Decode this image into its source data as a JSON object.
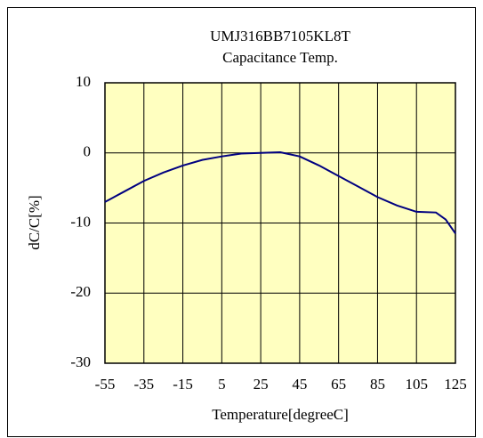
{
  "chart_data": {
    "type": "line",
    "title": "UMJ316BB7105KL8T",
    "subtitle": "Capacitance Temp.",
    "xlabel": "Temperature[degreeC]",
    "ylabel": "dC/C[%]",
    "x": [
      -55,
      -45,
      -35,
      -25,
      -15,
      -5,
      5,
      15,
      25,
      35,
      45,
      55,
      65,
      75,
      85,
      95,
      105,
      115,
      120,
      125
    ],
    "series": [
      {
        "name": "UMJ316BB7105KL8T",
        "color": "#000080",
        "values": [
          -7,
          -5.5,
          -4,
          -2.8,
          -1.8,
          -1,
          -0.5,
          -0.1,
          0,
          0.1,
          -0.5,
          -1.8,
          -3.3,
          -4.8,
          -6.3,
          -7.5,
          -8.4,
          -8.5,
          -9.5,
          -11.5
        ]
      }
    ],
    "xlim": [
      -55,
      125
    ],
    "xticks": [
      -55,
      -35,
      -15,
      5,
      25,
      45,
      65,
      85,
      105,
      125
    ],
    "ylim": [
      -30,
      10
    ],
    "yticks": [
      -30,
      -20,
      -10,
      0,
      10
    ],
    "grid": true,
    "plot_background": "#ffffc0"
  }
}
